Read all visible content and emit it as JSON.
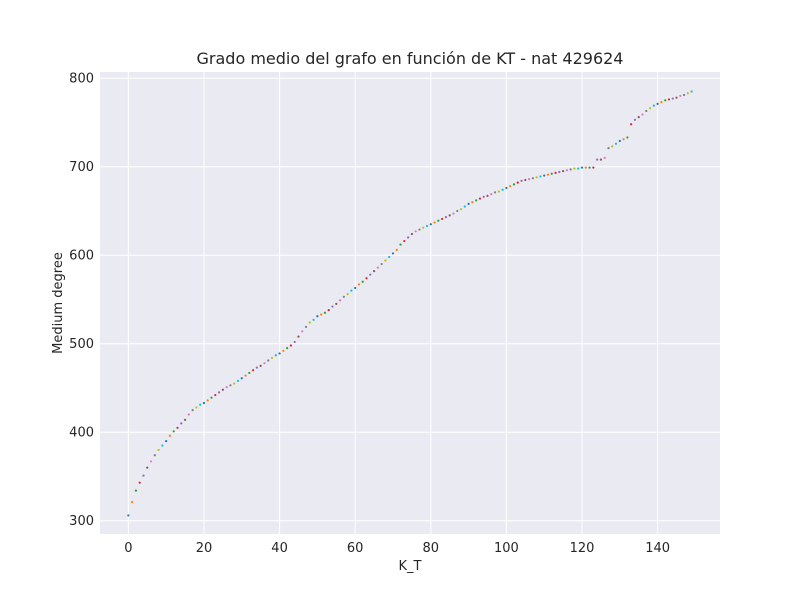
{
  "chart_data": {
    "type": "scatter",
    "title": "Grado medio del grafo en función de KT - nat 429624",
    "xlabel": "K_T",
    "ylabel": "Medium degree",
    "xlim": [
      -7.5,
      156.5
    ],
    "ylim": [
      285,
      807
    ],
    "xticks": [
      0,
      20,
      40,
      60,
      80,
      100,
      120,
      140
    ],
    "yticks": [
      300,
      400,
      500,
      600,
      700,
      800
    ],
    "grid": true,
    "background": "#eaeaf2",
    "grid_color": "#ffffff",
    "palette": [
      "#1f77b4",
      "#ff7f0e",
      "#2ca02c",
      "#d62728",
      "#9467bd",
      "#8c564b",
      "#e377c2",
      "#7f7f7f",
      "#bcbd22",
      "#17becf"
    ],
    "x": [
      0,
      1,
      2,
      3,
      4,
      5,
      6,
      7,
      8,
      9,
      10,
      11,
      12,
      13,
      14,
      15,
      16,
      17,
      18,
      19,
      20,
      21,
      22,
      23,
      24,
      25,
      26,
      27,
      28,
      29,
      30,
      31,
      32,
      33,
      34,
      35,
      36,
      37,
      38,
      39,
      40,
      41,
      42,
      43,
      44,
      45,
      46,
      47,
      48,
      49,
      50,
      51,
      52,
      53,
      54,
      55,
      56,
      57,
      58,
      59,
      60,
      61,
      62,
      63,
      64,
      65,
      66,
      67,
      68,
      69,
      70,
      71,
      72,
      73,
      74,
      75,
      76,
      77,
      78,
      79,
      80,
      81,
      82,
      83,
      84,
      85,
      86,
      87,
      88,
      89,
      90,
      91,
      92,
      93,
      94,
      95,
      96,
      97,
      98,
      99,
      100,
      101,
      102,
      103,
      104,
      105,
      106,
      107,
      108,
      109,
      110,
      111,
      112,
      113,
      114,
      115,
      116,
      117,
      118,
      119,
      120,
      121,
      122,
      123,
      124,
      125,
      126,
      127,
      128,
      129,
      130,
      131,
      132,
      133,
      134,
      135,
      136,
      137,
      138,
      139,
      140,
      141,
      142,
      143,
      144,
      145,
      146,
      147,
      148,
      149
    ],
    "y": [
      306,
      321,
      334,
      343,
      351,
      360,
      367,
      374,
      380,
      385,
      390,
      396,
      401,
      405,
      410,
      414,
      420,
      425,
      428,
      431,
      433,
      436,
      439,
      442,
      445,
      448,
      451,
      453,
      455,
      458,
      461,
      464,
      467,
      470,
      473,
      475,
      478,
      481,
      484,
      487,
      489,
      492,
      495,
      498,
      502,
      508,
      514,
      519,
      524,
      527,
      531,
      533,
      535,
      538,
      542,
      545,
      549,
      553,
      556,
      560,
      563,
      567,
      570,
      574,
      578,
      582,
      586,
      590,
      594,
      598,
      602,
      606,
      612,
      616,
      620,
      624,
      627,
      629,
      631,
      633,
      635,
      637,
      639,
      641,
      643,
      645,
      647,
      650,
      652,
      655,
      658,
      660,
      662,
      664,
      666,
      667,
      669,
      671,
      672,
      674,
      676,
      678,
      680,
      682,
      684,
      685,
      686,
      687,
      688,
      689,
      690,
      691,
      692,
      693,
      694,
      695,
      696,
      697,
      698,
      698,
      699,
      699,
      699,
      699,
      708,
      708,
      710,
      721,
      723,
      726,
      729,
      731,
      733,
      748,
      753,
      756,
      759,
      763,
      766,
      769,
      771,
      773,
      775,
      776,
      777,
      778,
      780,
      781,
      783,
      785
    ]
  }
}
